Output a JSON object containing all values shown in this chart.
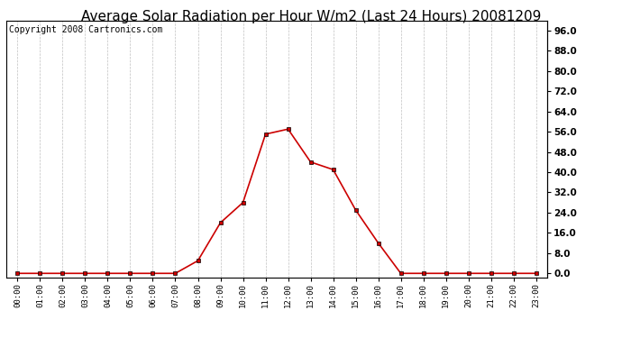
{
  "title": "Average Solar Radiation per Hour W/m2 (Last 24 Hours) 20081209",
  "copyright": "Copyright 2008 Cartronics.com",
  "hours": [
    "00:00",
    "01:00",
    "02:00",
    "03:00",
    "04:00",
    "05:00",
    "06:00",
    "07:00",
    "08:00",
    "09:00",
    "10:00",
    "11:00",
    "12:00",
    "13:00",
    "14:00",
    "15:00",
    "16:00",
    "17:00",
    "18:00",
    "19:00",
    "20:00",
    "21:00",
    "22:00",
    "23:00"
  ],
  "values": [
    0,
    0,
    0,
    0,
    0,
    0,
    0,
    0,
    5,
    20,
    28,
    55,
    57,
    44,
    41,
    25,
    12,
    0,
    0,
    0,
    0,
    0,
    0,
    0
  ],
  "line_color": "#cc0000",
  "marker_color": "#cc0000",
  "bg_color": "#ffffff",
  "grid_color": "#c0c0c0",
  "ylim_min": -1.5,
  "ylim_max": 100,
  "yticks": [
    0.0,
    8.0,
    16.0,
    24.0,
    32.0,
    40.0,
    48.0,
    56.0,
    64.0,
    72.0,
    80.0,
    88.0,
    96.0
  ],
  "title_fontsize": 11,
  "copyright_fontsize": 7
}
